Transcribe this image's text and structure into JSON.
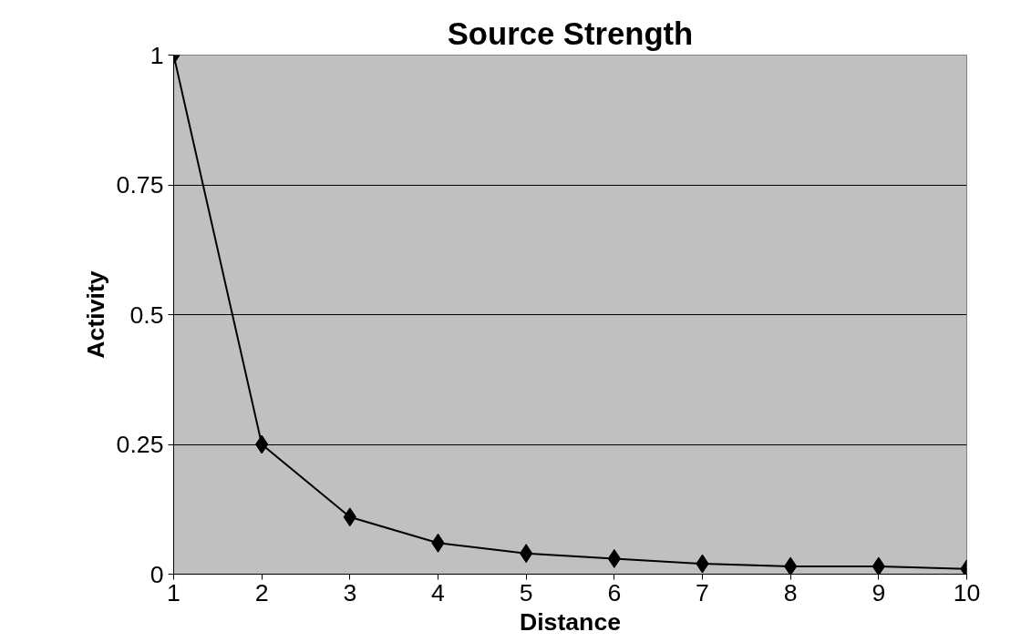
{
  "chart_data": {
    "type": "line",
    "title": "Source Strength",
    "xlabel": "Distance",
    "ylabel": "Activity",
    "x": [
      1,
      2,
      3,
      4,
      5,
      6,
      7,
      8,
      9,
      10
    ],
    "series": [
      {
        "color": "#000000",
        "values": [
          1,
          0.25,
          0.11,
          0.06,
          0.04,
          0.03,
          0.02,
          0.015,
          0.015,
          0.01
        ]
      }
    ],
    "xlim": [
      1,
      10
    ],
    "xticks": [
      1,
      2,
      3,
      4,
      5,
      6,
      7,
      8,
      9,
      10
    ],
    "ylim": [
      0,
      1
    ],
    "yticks": [
      0,
      0.25,
      0.5,
      0.75,
      1
    ],
    "grid": "y",
    "marker": "diamond",
    "line_style": "solid"
  }
}
